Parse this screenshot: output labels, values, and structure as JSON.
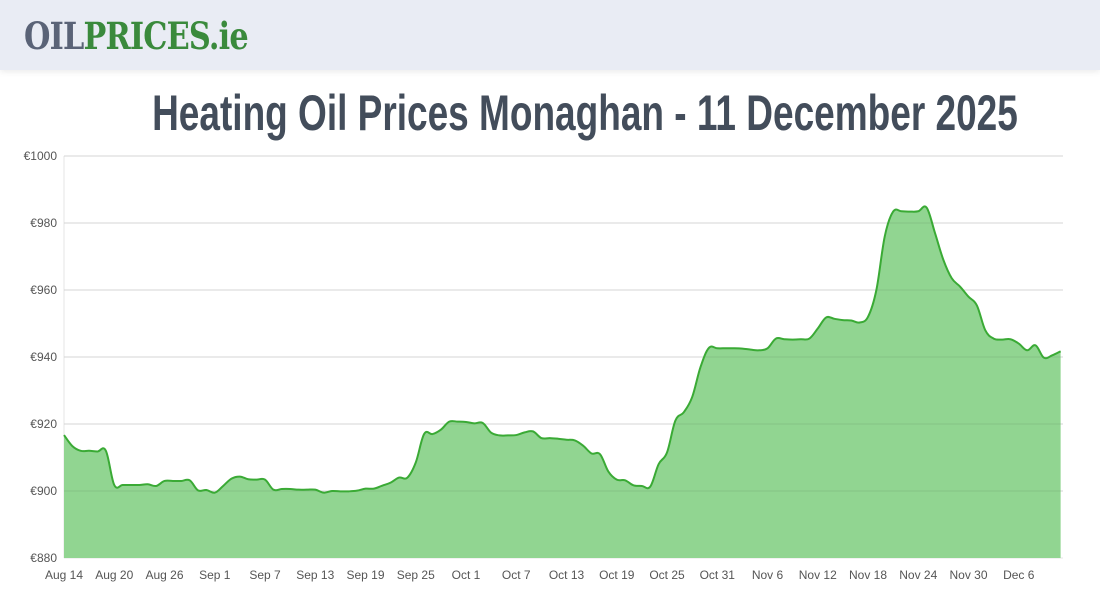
{
  "header": {
    "logo_part1": "OIL",
    "logo_part2": "PRICES.ie"
  },
  "title": "Heating Oil Prices Monaghan - 11 December 2025",
  "colors": {
    "line": "#3aaa35",
    "fill": "#91d591",
    "title": "#434d5b",
    "logo_gray": "#5a6377",
    "logo_green": "#3a8a3c"
  },
  "chart_data": {
    "type": "area",
    "title": "Heating Oil Prices Monaghan - 11 December 2025",
    "xlabel": "",
    "ylabel": "",
    "ylim": [
      880,
      1000
    ],
    "y_ticks": [
      "€880",
      "€900",
      "€920",
      "€940",
      "€960",
      "€980",
      "€1000"
    ],
    "x_ticks": [
      "Aug 14",
      "Aug 20",
      "Aug 26",
      "Sep 1",
      "Sep 7",
      "Sep 13",
      "Sep 19",
      "Sep 25",
      "Oct 1",
      "Oct 7",
      "Oct 13",
      "Oct 19",
      "Oct 25",
      "Oct 31",
      "Nov 6",
      "Nov 12",
      "Nov 18",
      "Nov 24",
      "Nov 30",
      "Dec 6"
    ],
    "x_range": [
      "Aug 14",
      "Dec 11"
    ],
    "grid": true,
    "legend": "none",
    "series": [
      {
        "values": [
          916.7,
          913.4,
          912,
          912,
          911.8,
          912,
          901.8,
          901.8,
          901.8,
          901.8,
          902,
          901.5,
          903,
          903,
          903,
          903.2,
          900.2,
          900.3,
          899.5,
          901.5,
          903.7,
          904.3,
          903.5,
          903.4,
          903.4,
          900.4,
          900.6,
          900.6,
          900.4,
          900.4,
          900.4,
          899.5,
          900,
          899.9,
          899.9,
          900.1,
          900.7,
          900.7,
          901.6,
          902.5,
          904,
          904,
          908.5,
          917,
          917,
          918.3,
          920.7,
          920.7,
          920.6,
          920.2,
          920.3,
          917.4,
          916.6,
          916.6,
          916.7,
          917.5,
          917.8,
          915.8,
          915.8,
          915.6,
          915.3,
          915.1,
          913.5,
          911.2,
          911,
          905.8,
          903.4,
          903.2,
          901.7,
          901.5,
          901.3,
          908,
          911.5,
          921,
          923.5,
          928,
          937,
          942.7,
          942.6,
          942.6,
          942.6,
          942.5,
          942.2,
          942,
          942.6,
          945.5,
          945.3,
          945.2,
          945.3,
          945.5,
          948.5,
          951.8,
          951.4,
          951,
          950.9,
          950.3,
          952,
          960,
          976,
          983.4,
          983.5,
          983.4,
          983.5,
          984.6,
          977,
          969,
          963.5,
          961,
          958,
          955.4,
          948,
          945.5,
          945.2,
          945.3,
          944,
          942,
          943.5,
          939.8,
          940.5,
          941.7
        ]
      }
    ]
  }
}
